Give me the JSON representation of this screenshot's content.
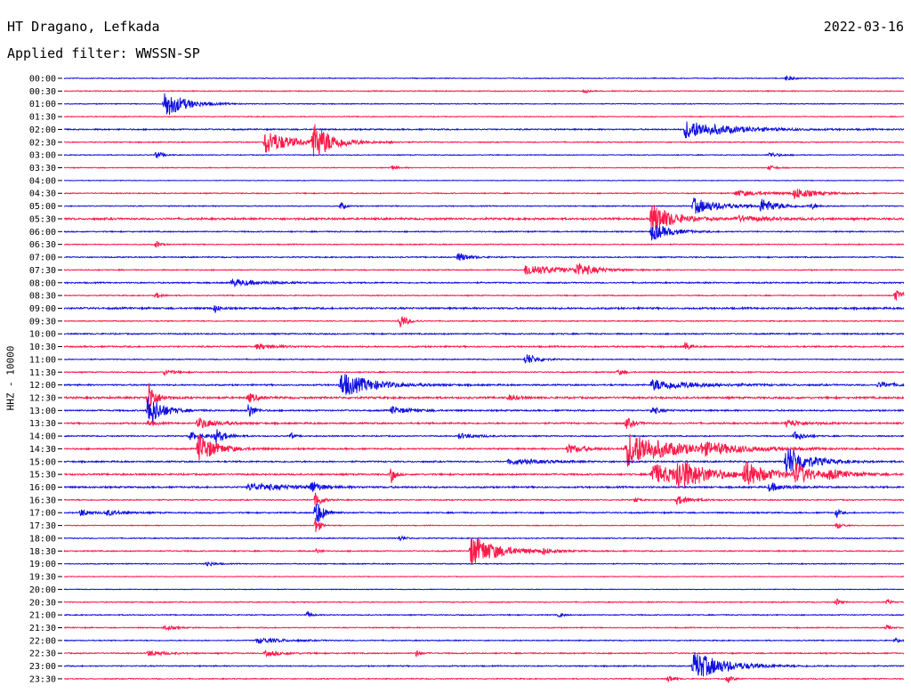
{
  "header": {
    "station": "HT Dragano, Lefkada",
    "date": "2022-03-16",
    "filter": "Applied filter: WWSSN-SP"
  },
  "colors": {
    "even": "#1010e0",
    "odd": "#ff1a4a"
  },
  "chart_data": {
    "type": "seismogram",
    "ylabel": "HHZ - 10000",
    "rows": [
      {
        "label": "00:00",
        "noise": 0.5,
        "events": [
          {
            "t": 0.86,
            "a": 3,
            "w": 0.008
          }
        ]
      },
      {
        "label": "00:30",
        "noise": 0.6,
        "events": [
          {
            "t": 0.62,
            "a": 2,
            "w": 0.004
          }
        ]
      },
      {
        "label": "01:00",
        "noise": 0.5,
        "events": [
          {
            "t": 0.12,
            "a": 16,
            "w": 0.022
          }
        ]
      },
      {
        "label": "01:30",
        "noise": 0.5,
        "events": []
      },
      {
        "label": "02:00",
        "noise": 0.8,
        "events": [
          {
            "t": 0.74,
            "a": 10,
            "w": 0.05
          }
        ]
      },
      {
        "label": "02:30",
        "noise": 0.6,
        "events": [
          {
            "t": 0.24,
            "a": 14,
            "w": 0.028
          },
          {
            "t": 0.296,
            "a": 21,
            "w": 0.022
          },
          {
            "t": 0.39,
            "a": 2,
            "w": 0.004
          }
        ]
      },
      {
        "label": "03:00",
        "noise": 0.5,
        "events": [
          {
            "t": 0.11,
            "a": 4,
            "w": 0.008
          },
          {
            "t": 0.84,
            "a": 3,
            "w": 0.01
          }
        ]
      },
      {
        "label": "03:30",
        "noise": 0.5,
        "events": [
          {
            "t": 0.39,
            "a": 3,
            "w": 0.006
          },
          {
            "t": 0.84,
            "a": 3,
            "w": 0.006
          }
        ]
      },
      {
        "label": "04:00",
        "noise": 0.4,
        "events": []
      },
      {
        "label": "04:30",
        "noise": 0.6,
        "events": [
          {
            "t": 0.8,
            "a": 3,
            "w": 0.04
          },
          {
            "t": 0.87,
            "a": 6,
            "w": 0.02
          }
        ]
      },
      {
        "label": "05:00",
        "noise": 0.6,
        "events": [
          {
            "t": 0.33,
            "a": 5,
            "w": 0.004
          },
          {
            "t": 0.75,
            "a": 9,
            "w": 0.03
          },
          {
            "t": 0.83,
            "a": 8,
            "w": 0.018
          },
          {
            "t": 0.89,
            "a": 3,
            "w": 0.006
          }
        ]
      },
      {
        "label": "05:30",
        "noise": 1.2,
        "events": [
          {
            "t": 0.7,
            "a": 18,
            "w": 0.022
          },
          {
            "t": 0.8,
            "a": 3,
            "w": 0.04
          }
        ]
      },
      {
        "label": "06:00",
        "noise": 0.7,
        "events": [
          {
            "t": 0.7,
            "a": 10,
            "w": 0.02
          }
        ]
      },
      {
        "label": "06:30",
        "noise": 0.6,
        "events": [
          {
            "t": 0.11,
            "a": 4,
            "w": 0.004
          }
        ]
      },
      {
        "label": "07:00",
        "noise": 0.7,
        "events": [
          {
            "t": 0.47,
            "a": 5,
            "w": 0.012
          }
        ]
      },
      {
        "label": "07:30",
        "noise": 0.6,
        "events": [
          {
            "t": 0.55,
            "a": 7,
            "w": 0.035
          },
          {
            "t": 0.61,
            "a": 7,
            "w": 0.02
          }
        ]
      },
      {
        "label": "08:00",
        "noise": 0.8,
        "events": [
          {
            "t": 0.2,
            "a": 4,
            "w": 0.03
          }
        ]
      },
      {
        "label": "08:30",
        "noise": 0.6,
        "events": [
          {
            "t": 0.11,
            "a": 3,
            "w": 0.006
          },
          {
            "t": 0.99,
            "a": 6,
            "w": 0.012
          }
        ]
      },
      {
        "label": "09:00",
        "noise": 1.1,
        "events": [
          {
            "t": 0.18,
            "a": 5,
            "w": 0.004
          }
        ]
      },
      {
        "label": "09:30",
        "noise": 0.6,
        "events": [
          {
            "t": 0.4,
            "a": 8,
            "w": 0.008
          }
        ]
      },
      {
        "label": "10:00",
        "noise": 0.8,
        "events": []
      },
      {
        "label": "10:30",
        "noise": 0.9,
        "events": [
          {
            "t": 0.23,
            "a": 3,
            "w": 0.02
          },
          {
            "t": 0.74,
            "a": 6,
            "w": 0.004
          }
        ]
      },
      {
        "label": "11:00",
        "noise": 0.6,
        "events": [
          {
            "t": 0.55,
            "a": 7,
            "w": 0.012
          }
        ]
      },
      {
        "label": "11:30",
        "noise": 0.7,
        "events": [
          {
            "t": 0.12,
            "a": 3,
            "w": 0.01
          },
          {
            "t": 0.66,
            "a": 3,
            "w": 0.006
          }
        ]
      },
      {
        "label": "12:00",
        "noise": 0.9,
        "events": [
          {
            "t": 0.33,
            "a": 14,
            "w": 0.035
          },
          {
            "t": 0.7,
            "a": 6,
            "w": 0.05
          },
          {
            "t": 0.97,
            "a": 3,
            "w": 0.02
          }
        ]
      },
      {
        "label": "12:30",
        "noise": 1.2,
        "events": [
          {
            "t": 0.1,
            "a": 20,
            "w": 0.008
          },
          {
            "t": 0.22,
            "a": 5,
            "w": 0.01
          },
          {
            "t": 0.53,
            "a": 3,
            "w": 0.01
          }
        ]
      },
      {
        "label": "13:00",
        "noise": 0.9,
        "events": [
          {
            "t": 0.1,
            "a": 20,
            "w": 0.015
          },
          {
            "t": 0.22,
            "a": 9,
            "w": 0.006
          },
          {
            "t": 0.39,
            "a": 4,
            "w": 0.02
          },
          {
            "t": 0.7,
            "a": 4,
            "w": 0.01
          }
        ]
      },
      {
        "label": "13:30",
        "noise": 1.0,
        "events": [
          {
            "t": 0.1,
            "a": 3,
            "w": 0.008
          },
          {
            "t": 0.16,
            "a": 6,
            "w": 0.02
          },
          {
            "t": 0.67,
            "a": 6,
            "w": 0.008
          },
          {
            "t": 0.86,
            "a": 4,
            "w": 0.02
          }
        ]
      },
      {
        "label": "14:00",
        "noise": 0.7,
        "events": [
          {
            "t": 0.15,
            "a": 4,
            "w": 0.02
          },
          {
            "t": 0.18,
            "a": 8,
            "w": 0.01
          },
          {
            "t": 0.27,
            "a": 4,
            "w": 0.004
          },
          {
            "t": 0.47,
            "a": 3,
            "w": 0.02
          },
          {
            "t": 0.87,
            "a": 6,
            "w": 0.01
          }
        ]
      },
      {
        "label": "14:30",
        "noise": 0.9,
        "events": [
          {
            "t": 0.16,
            "a": 17,
            "w": 0.02
          },
          {
            "t": 0.6,
            "a": 5,
            "w": 0.02
          },
          {
            "t": 0.67,
            "a": 20,
            "w": 0.05
          },
          {
            "t": 0.76,
            "a": 5,
            "w": 0.05
          }
        ]
      },
      {
        "label": "15:00",
        "noise": 0.9,
        "events": [
          {
            "t": 0.53,
            "a": 3,
            "w": 0.04
          },
          {
            "t": 0.86,
            "a": 18,
            "w": 0.025
          }
        ]
      },
      {
        "label": "15:30",
        "noise": 1.0,
        "events": [
          {
            "t": 0.39,
            "a": 10,
            "w": 0.004
          },
          {
            "t": 0.7,
            "a": 12,
            "w": 0.04
          },
          {
            "t": 0.73,
            "a": 15,
            "w": 0.03
          },
          {
            "t": 0.81,
            "a": 14,
            "w": 0.025
          },
          {
            "t": 0.87,
            "a": 12,
            "w": 0.02
          },
          {
            "t": 0.91,
            "a": 4,
            "w": 0.03
          }
        ]
      },
      {
        "label": "16:00",
        "noise": 1.0,
        "events": [
          {
            "t": 0.22,
            "a": 4,
            "w": 0.05
          },
          {
            "t": 0.295,
            "a": 7,
            "w": 0.008
          },
          {
            "t": 0.84,
            "a": 5,
            "w": 0.015
          }
        ]
      },
      {
        "label": "16:30",
        "noise": 0.7,
        "events": [
          {
            "t": 0.3,
            "a": 10,
            "w": 0.006
          },
          {
            "t": 0.68,
            "a": 3,
            "w": 0.004
          },
          {
            "t": 0.73,
            "a": 5,
            "w": 0.015
          }
        ]
      },
      {
        "label": "17:00",
        "noise": 0.8,
        "events": [
          {
            "t": 0.02,
            "a": 4,
            "w": 0.01
          },
          {
            "t": 0.05,
            "a": 3,
            "w": 0.02
          },
          {
            "t": 0.3,
            "a": 16,
            "w": 0.008
          },
          {
            "t": 0.92,
            "a": 5,
            "w": 0.004
          }
        ]
      },
      {
        "label": "17:30",
        "noise": 0.5,
        "events": [
          {
            "t": 0.3,
            "a": 12,
            "w": 0.004
          },
          {
            "t": 0.92,
            "a": 4,
            "w": 0.006
          }
        ]
      },
      {
        "label": "18:00",
        "noise": 0.6,
        "events": [
          {
            "t": 0.4,
            "a": 3,
            "w": 0.006
          }
        ]
      },
      {
        "label": "18:30",
        "noise": 0.7,
        "events": [
          {
            "t": 0.485,
            "a": 18,
            "w": 0.03
          },
          {
            "t": 0.3,
            "a": 3,
            "w": 0.004
          },
          {
            "t": 0.57,
            "a": 3,
            "w": 0.01
          }
        ]
      },
      {
        "label": "19:00",
        "noise": 0.6,
        "events": [
          {
            "t": 0.17,
            "a": 3,
            "w": 0.008
          }
        ]
      },
      {
        "label": "19:30",
        "noise": 0.4,
        "events": []
      },
      {
        "label": "20:00",
        "noise": 0.4,
        "events": []
      },
      {
        "label": "20:30",
        "noise": 0.6,
        "events": [
          {
            "t": 0.92,
            "a": 4,
            "w": 0.004
          },
          {
            "t": 0.98,
            "a": 3,
            "w": 0.004
          }
        ]
      },
      {
        "label": "21:00",
        "noise": 0.6,
        "events": [
          {
            "t": 0.29,
            "a": 4,
            "w": 0.004
          },
          {
            "t": 0.59,
            "a": 3,
            "w": 0.004
          }
        ]
      },
      {
        "label": "21:30",
        "noise": 0.6,
        "events": [
          {
            "t": 0.12,
            "a": 3,
            "w": 0.01
          },
          {
            "t": 0.98,
            "a": 3,
            "w": 0.004
          }
        ]
      },
      {
        "label": "22:00",
        "noise": 0.6,
        "events": [
          {
            "t": 0.23,
            "a": 3,
            "w": 0.03
          },
          {
            "t": 0.99,
            "a": 3,
            "w": 0.004
          }
        ]
      },
      {
        "label": "22:30",
        "noise": 0.7,
        "events": [
          {
            "t": 0.1,
            "a": 3,
            "w": 0.02
          },
          {
            "t": 0.42,
            "a": 4,
            "w": 0.004
          },
          {
            "t": 0.24,
            "a": 3,
            "w": 0.02
          }
        ]
      },
      {
        "label": "23:00",
        "noise": 0.7,
        "events": [
          {
            "t": 0.75,
            "a": 16,
            "w": 0.035
          }
        ]
      },
      {
        "label": "23:30",
        "noise": 0.6,
        "events": [
          {
            "t": 0.72,
            "a": 4,
            "w": 0.006
          },
          {
            "t": 0.79,
            "a": 4,
            "w": 0.006
          }
        ]
      }
    ]
  }
}
